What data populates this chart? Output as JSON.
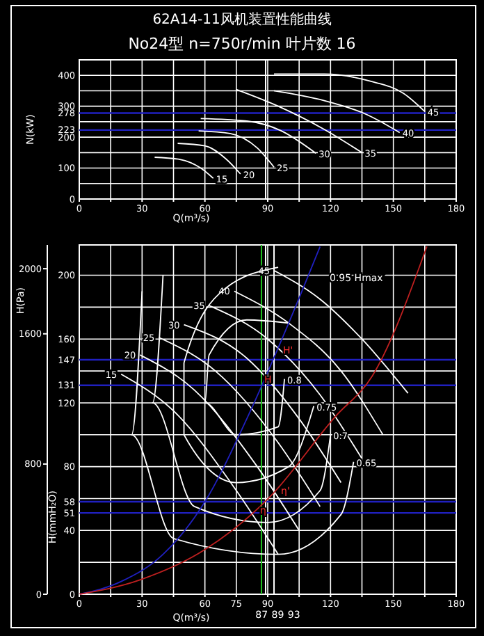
{
  "chart_data": [
    {
      "type": "line",
      "title": "62A14-11风机装置性能曲线",
      "subtitle": "No24型 n=750r/min 叶片数 16",
      "xlabel": "Q(m³/s)",
      "ylabel": "N(kW)",
      "xlim": [
        0,
        180
      ],
      "xticks": [
        0,
        {
          "value": 15,
          "label": null
        },
        30,
        {
          "value": 45,
          "label": null
        },
        60,
        {
          "value": 75,
          "label": null
        },
        90,
        {
          "value": 105,
          "label": null
        },
        120,
        {
          "value": 135,
          "label": null
        },
        150,
        {
          "value": 165,
          "label": null
        },
        180
      ],
      "ylim": [
        0,
        450
      ],
      "yticks": [
        0,
        {
          "value": 50,
          "label": null
        },
        100,
        {
          "value": 150,
          "label": null
        },
        200,
        {
          "value": 250,
          "label": null
        },
        300,
        {
          "value": 350,
          "label": null
        },
        400
      ],
      "grid": true,
      "ref_lines": [
        {
          "axis": "y",
          "value": 278,
          "label": "278",
          "color": "#2020c0"
        },
        {
          "axis": "y",
          "value": 223,
          "label": "223",
          "color": "#2020c0"
        },
        {
          "axis": "x",
          "value": 89,
          "color": "#ffffff"
        }
      ],
      "series": [
        {
          "name": "15",
          "color": "#ffffff",
          "x": [
            36,
            48,
            58,
            64
          ],
          "values": [
            135,
            128,
            100,
            67
          ]
        },
        {
          "name": "20",
          "color": "#ffffff",
          "x": [
            47,
            60,
            70,
            77
          ],
          "values": [
            180,
            172,
            130,
            81
          ]
        },
        {
          "name": "25",
          "color": "#ffffff",
          "x": [
            57,
            72,
            85,
            93
          ],
          "values": [
            220,
            212,
            165,
            103
          ]
        },
        {
          "name": "30",
          "color": "#ffffff",
          "x": [
            58,
            80,
            96,
            113
          ],
          "values": [
            260,
            252,
            222,
            148
          ]
        },
        {
          "name": "35",
          "color": "#ffffff",
          "x": [
            75,
            95,
            117,
            135
          ],
          "values": [
            354,
            300,
            225,
            150
          ]
        },
        {
          "name": "40",
          "color": "#ffffff",
          "x": [
            93,
            117,
            137,
            153
          ],
          "values": [
            350,
            318,
            274,
            215
          ]
        },
        {
          "name": "45",
          "color": "#ffffff",
          "x": [
            93,
            117,
            139,
            155,
            165
          ],
          "values": [
            404,
            404,
            381,
            341,
            283
          ]
        }
      ]
    },
    {
      "type": "line",
      "xlabel": "Q(m³/s)",
      "ylabel": "H(mmH₂O)",
      "y2label": "H(Pa)",
      "xlim": [
        0,
        180
      ],
      "xticks": [
        0,
        {
          "value": 15,
          "label": null
        },
        30,
        {
          "value": 45,
          "label": null
        },
        60,
        75,
        90,
        {
          "value": 105,
          "label": null
        },
        120,
        {
          "value": 135,
          "label": null
        },
        150,
        {
          "value": 165,
          "label": null
        },
        180
      ],
      "ylim": [
        0,
        219
      ],
      "yticks": [
        0,
        {
          "value": 20,
          "label": null
        },
        40,
        {
          "value": 60,
          "label": null
        },
        80,
        {
          "value": 100,
          "label": null
        },
        120,
        {
          "value": 140,
          "label": null
        },
        160,
        {
          "value": 180,
          "label": null
        },
        200
      ],
      "y2lim": [
        0,
        2146
      ],
      "y2ticks": [
        0,
        800,
        1600,
        2000
      ],
      "grid": true,
      "ref_lines": [
        {
          "axis": "y",
          "value": 147,
          "label": "147",
          "color": "#2020c0"
        },
        {
          "axis": "y",
          "value": 131,
          "label": "131",
          "color": "#2020c0"
        },
        {
          "axis": "y",
          "value": 58,
          "label": "58",
          "color": "#2020c0"
        },
        {
          "axis": "y",
          "value": 51,
          "label": "51",
          "color": "#2020c0"
        },
        {
          "axis": "x",
          "value": 87,
          "label": "87",
          "color": "#20c020"
        },
        {
          "axis": "x",
          "value": 89,
          "label": "89",
          "color": "#ffffff"
        },
        {
          "axis": "x",
          "value": 93,
          "label": "93",
          "color": "#ffffff"
        }
      ],
      "annotations": [
        "0.95 Hmax",
        {
          "text": "H'",
          "x": 96,
          "y": 149
        },
        {
          "text": "H",
          "x": 87,
          "y": 131
        },
        {
          "text": "η'",
          "x": 95,
          "y": 61
        },
        {
          "text": "η",
          "x": 85,
          "y": 49
        }
      ],
      "series": [
        {
          "name": "15",
          "color": "#ffffff",
          "x": [
            95,
            75,
            45,
            20
          ],
          "values": [
            25,
            65,
            115,
            138
          ]
        },
        {
          "name": "20",
          "color": "#ffffff",
          "x": [
            105,
            85,
            55,
            29
          ],
          "values": [
            40,
            80,
            128,
            150
          ]
        },
        {
          "name": "25",
          "color": "#ffffff",
          "x": [
            115,
            95,
            65,
            38
          ],
          "values": [
            55,
            95,
            140,
            161
          ]
        },
        {
          "name": "30",
          "color": "#ffffff",
          "x": [
            125,
            105,
            80,
            50
          ],
          "values": [
            70,
            110,
            148,
            169
          ]
        },
        {
          "name": "35",
          "color": "#ffffff",
          "x": [
            135,
            115,
            90,
            62
          ],
          "values": [
            85,
            125,
            160,
            181
          ]
        },
        {
          "name": "40",
          "color": "#ffffff",
          "x": [
            145,
            125,
            100,
            74
          ],
          "values": [
            100,
            140,
            170,
            190
          ]
        },
        {
          "name": "45",
          "color": "#ffffff",
          "x": [
            157,
            135,
            115,
            93
          ],
          "values": [
            126,
            160,
            185,
            203
          ]
        },
        {
          "name": "0.8",
          "color": "#ffffff",
          "x": [
            100,
            80,
            62,
            60,
            75,
            95,
            98
          ],
          "values": [
            170,
            172,
            150,
            120,
            100,
            105,
            135
          ]
        },
        {
          "name": "0.75",
          "color": "#ffffff",
          "x": [
            95,
            70,
            50,
            50,
            75,
            100,
            112
          ],
          "values": [
            205,
            192,
            145,
            100,
            70,
            80,
            118
          ]
        },
        {
          "name": "0.7",
          "color": "#ffffff",
          "x": [
            40,
            35,
            55,
            90,
            115,
            120
          ],
          "values": [
            200,
            120,
            55,
            45,
            65,
            100
          ]
        },
        {
          "name": "0.65",
          "color": "#ffffff",
          "x": [
            30,
            25,
            45,
            95,
            125,
            131
          ],
          "values": [
            190,
            100,
            35,
            25,
            50,
            83
          ]
        },
        {
          "color": "#2020c0",
          "x": [
            0,
            20,
            40,
            60,
            80,
            100,
            115
          ],
          "values": [
            0,
            8,
            25,
            58,
            110,
            170,
            218
          ]
        },
        {
          "color": "#c02020",
          "x": [
            0,
            29,
            60,
            91,
            122,
            140,
            166
          ],
          "values": [
            0,
            9,
            28,
            61,
            111,
            137,
            218
          ]
        }
      ]
    }
  ]
}
